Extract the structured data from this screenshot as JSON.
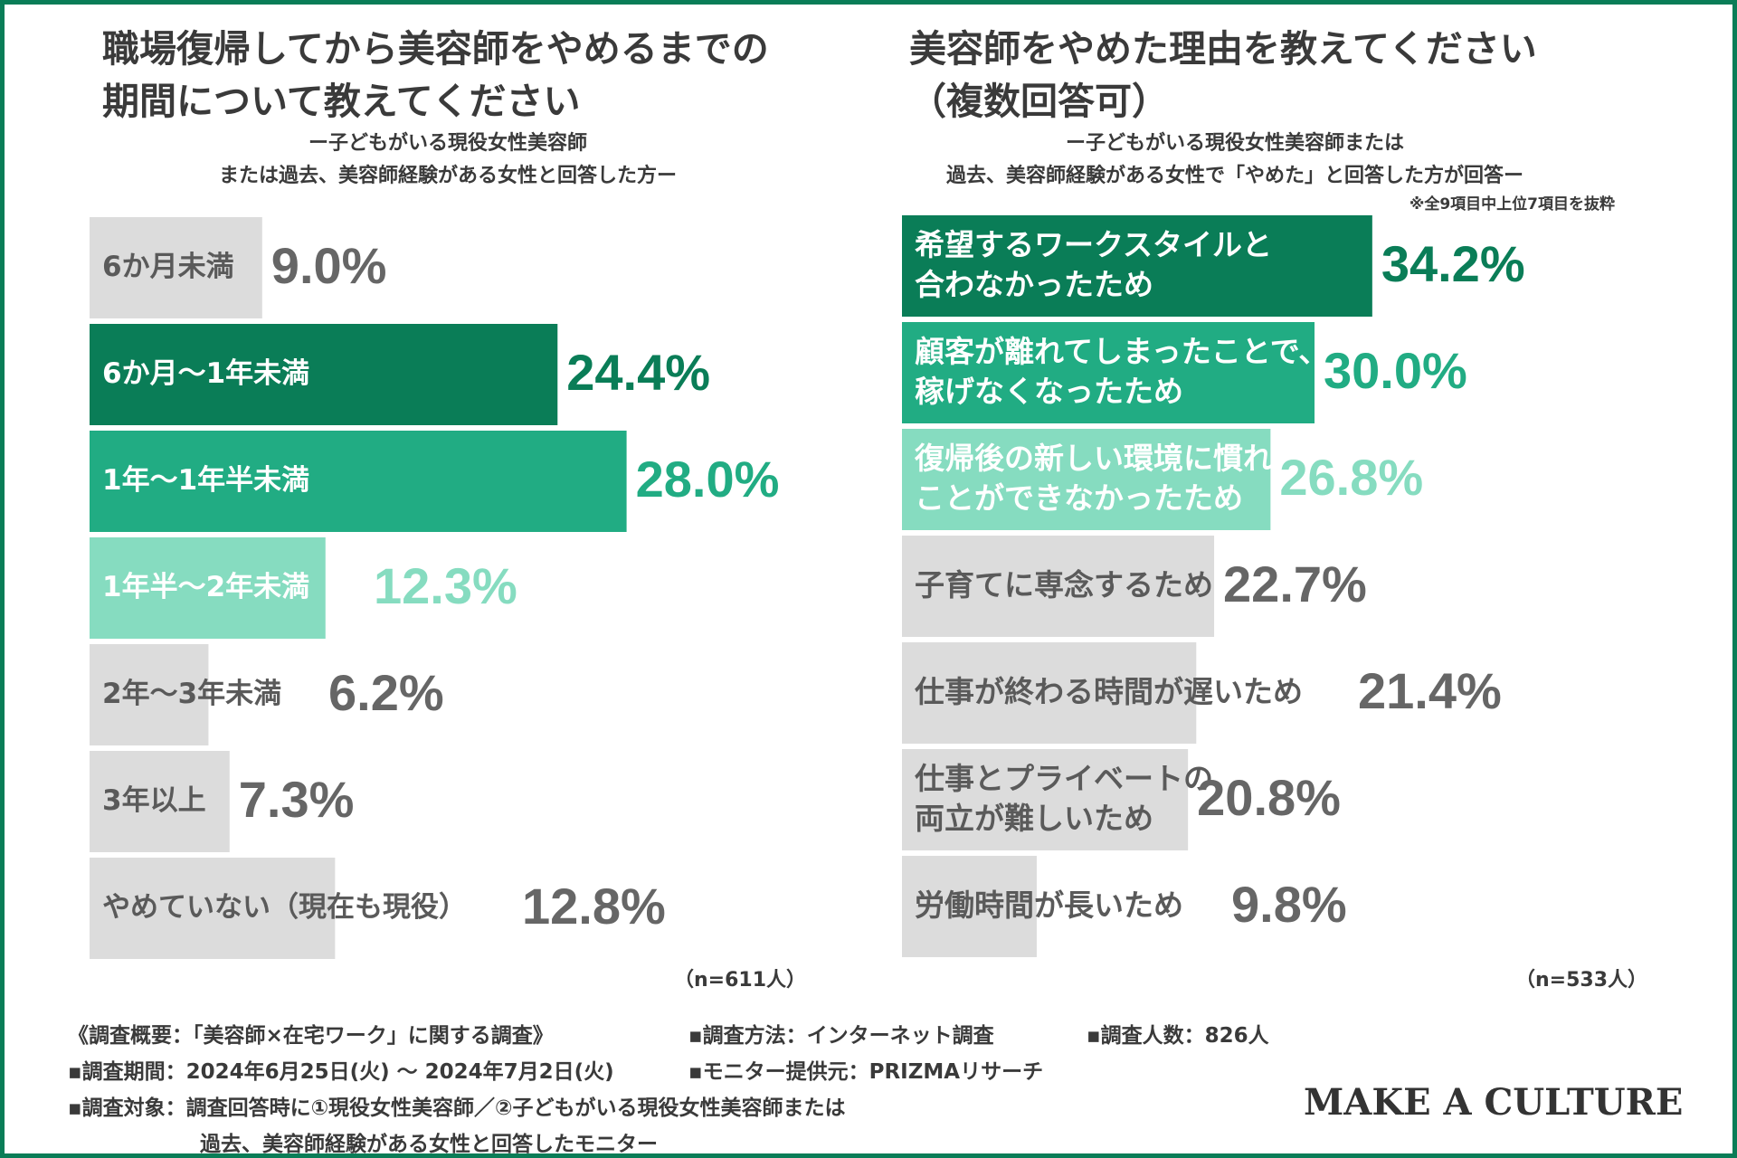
{
  "colors": {
    "frame": "#0a7d57",
    "dark": "#0a7d57",
    "mid": "#21ac83",
    "light": "#86dcc0",
    "gray": "#dcdcdc",
    "grayText": "#666666",
    "labelGray": "#5a5a5a"
  },
  "left": {
    "title": "職場復帰してから美容師をやめるまでの\n期間について教えてください",
    "subtitle": "ー子どもがいる現役女性美容師\nまたは過去、美容師経験がある女性と回答した方ー",
    "n_label": "（n=611人）"
  },
  "right": {
    "title": "美容師をやめた理由を教えてください\n（複数回答可）",
    "subtitle": "ー子どもがいる現役女性美容師または\n過去、美容師経験がある女性で「やめた」と回答した方が回答ー",
    "note": "※全9項目中上位7項目を抜粋",
    "n_label": "（n=533人）"
  },
  "chart_data": [
    {
      "type": "bar",
      "orientation": "horizontal",
      "unit": "%",
      "categories": [
        "6か月未満",
        "6か月〜1年未満",
        "1年〜1年半未満",
        "1年半〜2年未満",
        "2年〜3年未満",
        "3年以上",
        "やめていない（現在も現役）"
      ],
      "values": [
        9.0,
        24.4,
        28.0,
        12.3,
        6.2,
        7.3,
        12.8
      ],
      "value_labels": [
        "9.0%",
        "24.4%",
        "28.0%",
        "12.3%",
        "6.2%",
        "7.3%",
        "12.8%"
      ],
      "highlight": [
        "gray",
        "dark",
        "mid",
        "light",
        "gray",
        "gray",
        "gray"
      ]
    },
    {
      "type": "bar",
      "orientation": "horizontal",
      "unit": "%",
      "categories": [
        "希望するワークスタイルと\n合わなかったため",
        "顧客が離れてしまったことで、\n稼げなくなったため",
        "復帰後の新しい環境に慣れる\nことができなかったため",
        "子育てに専念するため",
        "仕事が終わる時間が遅いため",
        "仕事とプライベートの\n両立が難しいため",
        "労働時間が長いため"
      ],
      "values": [
        34.2,
        30.0,
        26.8,
        22.7,
        21.4,
        20.8,
        9.8
      ],
      "value_labels": [
        "34.2%",
        "30.0%",
        "26.8%",
        "22.7%",
        "21.4%",
        "20.8%",
        "9.8%"
      ],
      "highlight": [
        "dark",
        "mid",
        "light",
        "gray",
        "gray",
        "gray",
        "gray"
      ]
    }
  ],
  "footer": {
    "overview": "《調査概要：「美容師×在宅ワーク」に関する調査》",
    "method": "▪調査方法：インターネット調査",
    "count": "▪調査人数：826人",
    "period": "▪調査期間：2024年6月25日(火) 〜 2024年7月2日(火)",
    "provider": "▪モニター提供元：PRIZMAリサーチ",
    "target1": "▪調査対象：調査回答時に①現役女性美容師／②子どもがいる現役女性美容師または",
    "target2": "過去、美容師経験がある女性と回答したモニター",
    "brand": "MAKE A CULTURE"
  }
}
